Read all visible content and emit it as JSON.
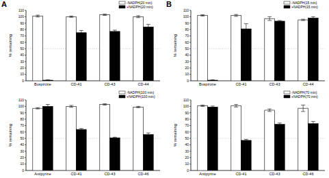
{
  "panel_labels": [
    "A",
    "B"
  ],
  "chart_data": [
    {
      "type": "bar",
      "y_label": "% remaining",
      "categories": [
        "Buspirone",
        "CD-41",
        "CD-43",
        "CD-44"
      ],
      "series": [
        {
          "name": "-NADPH(20 min)",
          "color": "#ffffff",
          "values": [
            101,
            100,
            103,
            100
          ],
          "errors": [
            1.5,
            1,
            1,
            1.5
          ]
        },
        {
          "name": "+NADPH(20 min)",
          "color": "#000000",
          "values": [
            1,
            75,
            77,
            84
          ],
          "errors": [
            0.5,
            3.5,
            2,
            4
          ]
        }
      ],
      "ylim": [
        0,
        110
      ],
      "yticks": [
        0,
        10,
        20,
        30,
        40,
        50,
        60,
        70,
        80,
        90,
        100,
        110
      ],
      "threshold": 50,
      "legend": "upper right"
    },
    {
      "type": "bar",
      "y_label": "% remaining",
      "categories": [
        "Antipyrine",
        "CD-41",
        "CD-43",
        "CD-46"
      ],
      "series": [
        {
          "name": "-NADPH(100 min)",
          "color": "#ffffff",
          "values": [
            97,
            100,
            103,
            99
          ],
          "errors": [
            1,
            1.5,
            1,
            1
          ]
        },
        {
          "name": "+NADPH(100 min)",
          "color": "#000000",
          "values": [
            100,
            64,
            51,
            56
          ],
          "errors": [
            3,
            1.5,
            1,
            2.5
          ]
        }
      ],
      "ylim": [
        0,
        110
      ],
      "yticks": [
        0,
        10,
        20,
        30,
        40,
        50,
        60,
        70,
        80,
        90,
        100,
        110
      ],
      "threshold": 50,
      "legend": "upper right"
    },
    {
      "type": "bar",
      "y_label": "% remaining",
      "categories": [
        "Buspirone",
        "CD-41",
        "CD-43",
        "CD-44"
      ],
      "series": [
        {
          "name": "-NADPH(15 min)",
          "color": "#ffffff",
          "values": [
            102,
            102,
            97,
            95
          ],
          "errors": [
            1,
            1.5,
            3,
            1
          ]
        },
        {
          "name": "+NADPH(15 min)",
          "color": "#000000",
          "values": [
            1,
            81,
            93,
            98
          ],
          "errors": [
            0.5,
            8,
            1,
            2
          ]
        }
      ],
      "ylim": [
        0,
        110
      ],
      "yticks": [
        0,
        10,
        20,
        30,
        40,
        50,
        60,
        70,
        80,
        90,
        100,
        110
      ],
      "threshold": 50,
      "legend": "upper right"
    },
    {
      "type": "bar",
      "y_label": "% remaining",
      "categories": [
        "Antipyrine",
        "CD-41",
        "CD-43",
        "CD-46"
      ],
      "series": [
        {
          "name": "-NADPH(70 min)",
          "color": "#ffffff",
          "values": [
            101,
            101,
            94,
            97
          ],
          "errors": [
            1,
            2,
            2,
            5
          ]
        },
        {
          "name": "+NADPH(70 min)",
          "color": "#000000",
          "values": [
            99,
            47,
            72,
            73
          ],
          "errors": [
            1.5,
            1.5,
            2,
            3.5
          ]
        }
      ],
      "ylim": [
        0,
        110
      ],
      "yticks": [
        0,
        10,
        20,
        30,
        40,
        50,
        60,
        70,
        80,
        90,
        100,
        110
      ],
      "threshold": 50,
      "legend": "upper right"
    }
  ]
}
